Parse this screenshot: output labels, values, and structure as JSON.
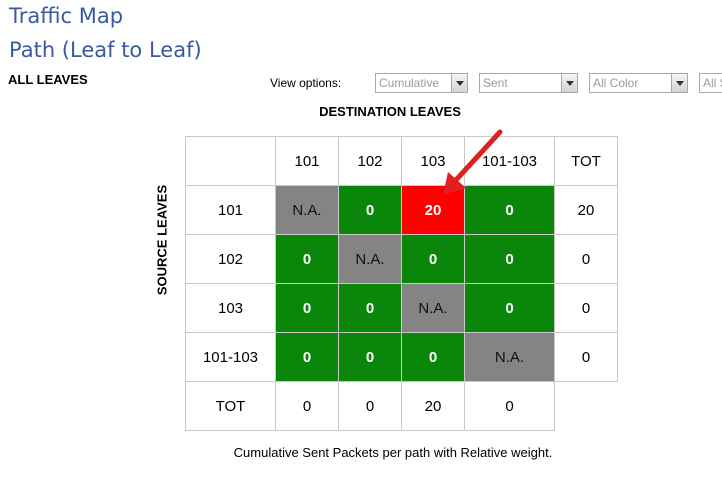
{
  "page": {
    "title_line1": "Traffic Map",
    "title_line2": "Path (Leaf to Leaf)",
    "scope_label": "ALL LEAVES"
  },
  "view_options": {
    "label": "View options:",
    "selects": [
      "Cumulative",
      "Sent",
      "All Color",
      "All S"
    ]
  },
  "matrix": {
    "column_axis_label": "DESTINATION LEAVES",
    "row_axis_label": "SOURCE LEAVES",
    "headers": [
      "101",
      "102",
      "103",
      "101-103",
      "TOT"
    ],
    "rows": [
      {
        "label": "101",
        "cells": [
          "N.A.",
          "0",
          "20",
          "0"
        ],
        "total": "20"
      },
      {
        "label": "102",
        "cells": [
          "0",
          "N.A.",
          "0",
          "0"
        ],
        "total": "0"
      },
      {
        "label": "103",
        "cells": [
          "0",
          "0",
          "N.A.",
          "0"
        ],
        "total": "0"
      },
      {
        "label": "101-103",
        "cells": [
          "0",
          "0",
          "0",
          "N.A."
        ],
        "total": "0"
      }
    ],
    "total_row": {
      "label": "TOT",
      "cells": [
        "0",
        "0",
        "20",
        "0"
      ]
    },
    "caption": "Cumulative Sent Packets per path with Relative weight."
  },
  "colors": {
    "title": "#3a5aa0",
    "na_cell": "#848484",
    "zero_cell": "#0a870a",
    "hot_cell": "#ff0000",
    "annotation_arrow": "#e02020"
  },
  "annotation": {
    "icon": "red-arrow-icon"
  }
}
